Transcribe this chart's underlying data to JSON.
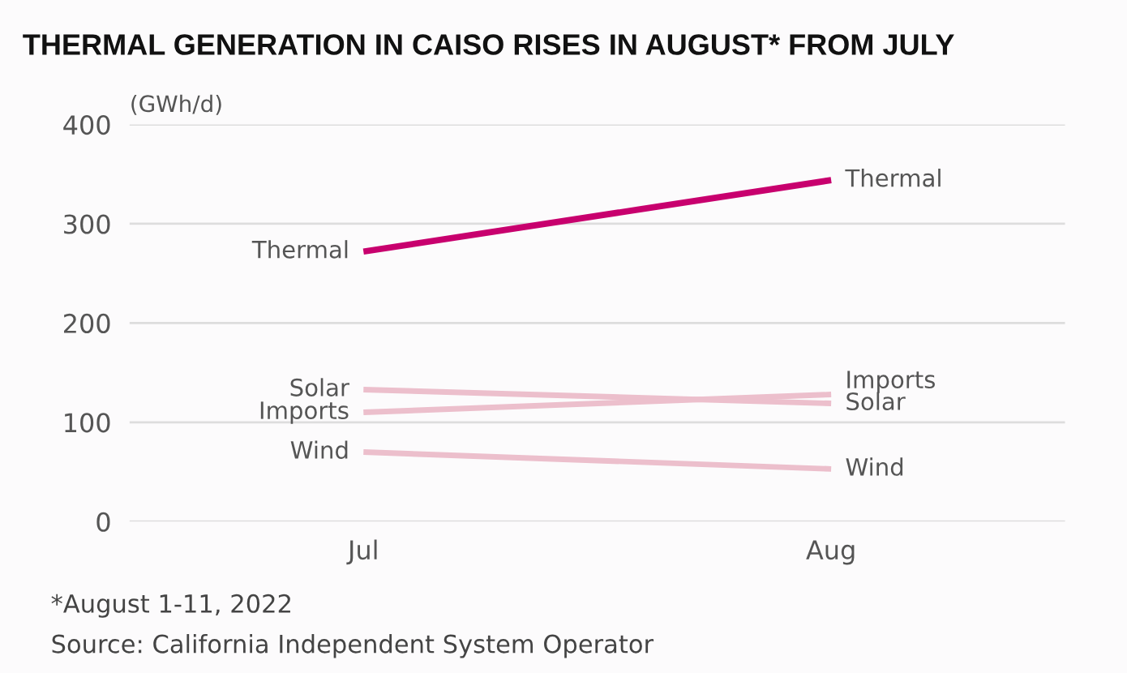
{
  "chart_data": {
    "type": "line",
    "title": "THERMAL GENERATION IN CAISO RISES IN AUGUST* FROM JULY",
    "ylabel": "(GWh/d)",
    "categories": [
      "Jul",
      "Aug"
    ],
    "series": [
      {
        "name": "Thermal",
        "color": "#c8006e",
        "values": [
          272,
          344
        ]
      },
      {
        "name": "Solar",
        "color": "#ecbfcc",
        "values": [
          133,
          119
        ]
      },
      {
        "name": "Imports",
        "color": "#ecbfcc",
        "values": [
          110,
          128
        ]
      },
      {
        "name": "Wind",
        "color": "#ecbfcc",
        "values": [
          70,
          53
        ]
      }
    ],
    "ylim": [
      0,
      400
    ],
    "yticks": [
      0,
      100,
      200,
      300,
      400
    ],
    "grid": "y",
    "legend": false,
    "marker": "none",
    "line_style": "solid",
    "annotations": [
      "*August 1-11, 2022",
      "Source: California Independent System Operator"
    ]
  }
}
